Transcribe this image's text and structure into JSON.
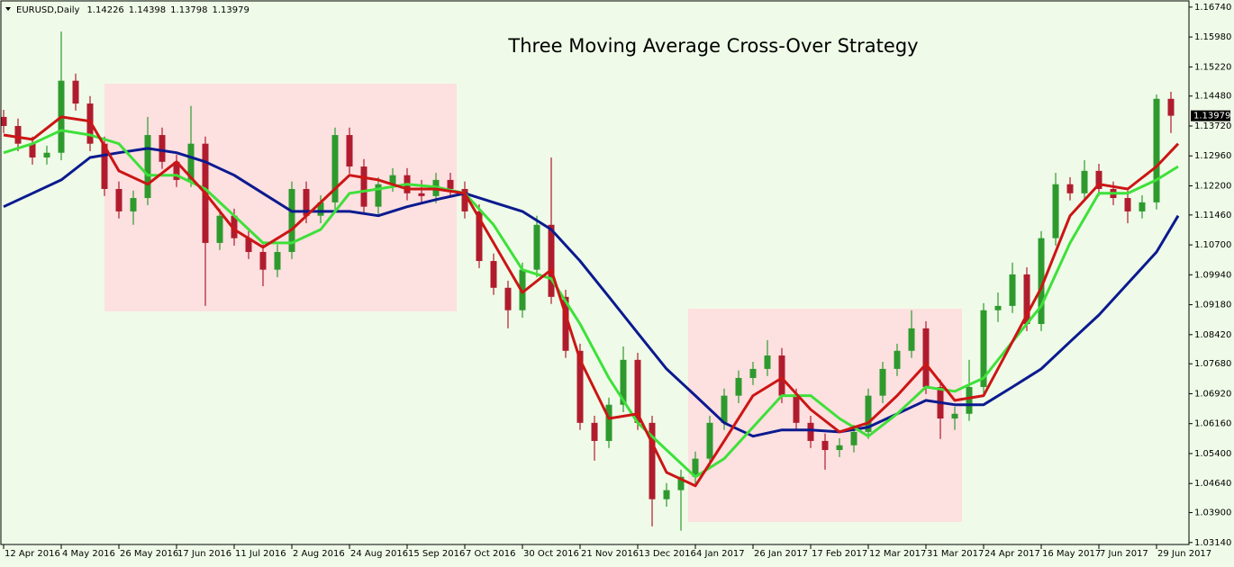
{
  "chart_data": {
    "type": "candlestick",
    "header": {
      "symbol": "EURUSD,Daily",
      "ohlc": [
        1.14226,
        1.14398,
        1.13798,
        1.13979
      ]
    },
    "title": "Three Moving Average Cross-Over Strategy",
    "up_color": "#2e9a2e",
    "down_color": "#b01c2e",
    "x": [
      0,
      4,
      8,
      12,
      16,
      20,
      24,
      28,
      32,
      36,
      40,
      44,
      48,
      52,
      56,
      60,
      64,
      68,
      72,
      76,
      80,
      84,
      88,
      92,
      96,
      100,
      104,
      108,
      112,
      116,
      120,
      124,
      128,
      132,
      136,
      140,
      144,
      148,
      152,
      156,
      160,
      164,
      168,
      172,
      176,
      180,
      184,
      188,
      192,
      196,
      200,
      204,
      208,
      212,
      216,
      220,
      224,
      228,
      232,
      236,
      240,
      244,
      248,
      252,
      256,
      260,
      264,
      268,
      272,
      276,
      280,
      284,
      288,
      292,
      296,
      300,
      304,
      308,
      312,
      316,
      320,
      324
    ],
    "open": [
      1.1395,
      1.1372,
      1.1327,
      1.1292,
      1.1304,
      1.1487,
      1.1429,
      1.1327,
      1.1212,
      1.1155,
      1.1189,
      1.1349,
      1.1281,
      1.1235,
      1.1327,
      1.1075,
      1.1144,
      1.1087,
      1.1052,
      1.1007,
      1.1052,
      1.1212,
      1.1144,
      1.1178,
      1.1349,
      1.1269,
      1.1167,
      1.1224,
      1.1247,
      1.1201,
      1.1194,
      1.1235,
      1.1212,
      1.1155,
      1.1029,
      1.0961,
      1.0904,
      1.1007,
      1.1121,
      1.0938,
      1.0801,
      1.0618,
      1.0572,
      1.0664,
      1.0778,
      1.0618,
      1.0424,
      1.0447,
      1.0481,
      1.0527,
      1.0618,
      1.0687,
      1.0732,
      1.0755,
      1.0789,
      1.0687,
      1.0618,
      1.0572,
      1.0549,
      1.0561,
      1.0595,
      1.0687,
      1.0755,
      1.0801,
      1.0858,
      1.0709,
      1.0629,
      1.0641,
      1.0709,
      1.0904,
      1.0915,
      1.0995,
      1.0869,
      1.1087,
      1.1224,
      1.1201,
      1.1258,
      1.1212,
      1.1189,
      1.1155,
      1.1178,
      1.1441
    ],
    "high": [
      1.1413,
      1.1391,
      1.1345,
      1.1322,
      1.1612,
      1.1505,
      1.1448,
      1.1345,
      1.1231,
      1.1208,
      1.1395,
      1.1368,
      1.1299,
      1.1423,
      1.1345,
      1.1162,
      1.1162,
      1.1105,
      1.1071,
      1.1071,
      1.1231,
      1.1231,
      1.1196,
      1.1368,
      1.1368,
      1.1288,
      1.1242,
      1.1265,
      1.1265,
      1.1235,
      1.1253,
      1.1253,
      1.1231,
      1.1173,
      1.1048,
      1.0979,
      1.1025,
      1.1144,
      1.1292,
      1.0956,
      1.0819,
      1.0636,
      1.0682,
      1.0812,
      1.0796,
      1.0636,
      1.0465,
      1.0499,
      1.0545,
      1.0636,
      1.0705,
      1.0751,
      1.0773,
      1.0828,
      1.0808,
      1.0705,
      1.0636,
      1.0591,
      1.0579,
      1.0613,
      1.0705,
      1.0773,
      1.0819,
      1.0904,
      1.0876,
      1.0728,
      1.0659,
      1.0778,
      1.0922,
      1.0949,
      1.1025,
      1.1013,
      1.1105,
      1.1253,
      1.1242,
      1.1285,
      1.1276,
      1.1231,
      1.1208,
      1.1196,
      1.1452,
      1.1459
    ],
    "low": [
      1.1354,
      1.1308,
      1.1274,
      1.1274,
      1.1285,
      1.1411,
      1.1308,
      1.1194,
      1.1137,
      1.1121,
      1.1171,
      1.1263,
      1.1217,
      1.1217,
      1.0915,
      1.1057,
      1.1068,
      1.1034,
      1.0965,
      1.0988,
      1.1034,
      1.1125,
      1.1125,
      1.116,
      1.1251,
      1.1148,
      1.1148,
      1.1205,
      1.1183,
      1.1176,
      1.1176,
      1.1194,
      1.1137,
      1.1011,
      1.0943,
      1.0858,
      1.0885,
      1.0988,
      1.092,
      1.0783,
      1.06,
      1.0522,
      1.0554,
      1.0645,
      1.06,
      1.0355,
      1.0405,
      1.0344,
      1.0463,
      1.0508,
      1.06,
      1.0668,
      1.0714,
      1.0737,
      1.0668,
      1.06,
      1.0554,
      1.0499,
      1.0531,
      1.0543,
      1.0577,
      1.0668,
      1.0737,
      1.0783,
      1.0691,
      1.0577,
      1.06,
      1.0623,
      1.0691,
      1.0874,
      1.0897,
      1.0851,
      1.0851,
      1.1068,
      1.1183,
      1.1183,
      1.1194,
      1.1171,
      1.1125,
      1.1137,
      1.116,
      1.1354
    ],
    "close": [
      1.1372,
      1.1327,
      1.1292,
      1.1304,
      1.1487,
      1.1429,
      1.1327,
      1.1212,
      1.1155,
      1.1189,
      1.1349,
      1.1281,
      1.1235,
      1.1327,
      1.1075,
      1.1144,
      1.1087,
      1.1052,
      1.1007,
      1.1052,
      1.1212,
      1.1144,
      1.1178,
      1.1349,
      1.1269,
      1.1167,
      1.1224,
      1.1247,
      1.1201,
      1.1194,
      1.1235,
      1.1212,
      1.1155,
      1.1029,
      1.0961,
      1.0904,
      1.1007,
      1.1121,
      1.0938,
      1.0801,
      1.0618,
      1.0572,
      1.0664,
      1.0778,
      1.0618,
      1.0424,
      1.0447,
      1.0481,
      1.0527,
      1.0618,
      1.0687,
      1.0732,
      1.0755,
      1.0789,
      1.0687,
      1.0618,
      1.0572,
      1.0549,
      1.0561,
      1.0595,
      1.0687,
      1.0755,
      1.0801,
      1.0858,
      1.0709,
      1.0629,
      1.0641,
      1.0709,
      1.0904,
      1.0915,
      1.0995,
      1.0869,
      1.1087,
      1.1224,
      1.1201,
      1.1258,
      1.1212,
      1.1189,
      1.1155,
      1.1178,
      1.1441,
      1.1398
    ],
    "lines": [
      {
        "color": "#0b1a8f",
        "x": [
          0,
          8,
          16,
          24,
          32,
          40,
          48,
          56,
          64,
          72,
          80,
          88,
          96,
          104,
          112,
          120,
          128,
          136,
          144,
          152,
          160,
          168,
          176,
          184,
          192,
          200,
          208,
          216,
          224,
          232,
          240,
          248,
          256,
          264,
          272,
          280,
          288,
          296,
          304,
          312,
          320,
          326
        ],
        "values": [
          1.1167,
          1.1201,
          1.1235,
          1.1292,
          1.1304,
          1.1315,
          1.1304,
          1.1281,
          1.1247,
          1.1201,
          1.1155,
          1.1155,
          1.1155,
          1.1144,
          1.1167,
          1.1185,
          1.1201,
          1.1178,
          1.1155,
          1.1109,
          1.1029,
          1.0938,
          1.0846,
          1.0755,
          1.0687,
          1.0618,
          1.0584,
          1.06,
          1.06,
          1.0595,
          1.0607,
          1.0641,
          1.0675,
          1.0664,
          1.0664,
          1.0709,
          1.0755,
          1.0824,
          1.0892,
          1.0972,
          1.1052,
          1.1144
        ]
      },
      {
        "color": "#3ee03a",
        "x": [
          0,
          8,
          16,
          24,
          32,
          40,
          48,
          56,
          64,
          72,
          80,
          88,
          96,
          104,
          112,
          120,
          128,
          136,
          144,
          152,
          160,
          168,
          176,
          184,
          192,
          200,
          208,
          216,
          224,
          232,
          240,
          248,
          256,
          264,
          272,
          280,
          288,
          296,
          304,
          312,
          320,
          326
        ],
        "values": [
          1.1304,
          1.1327,
          1.1361,
          1.1349,
          1.1327,
          1.1247,
          1.1247,
          1.1212,
          1.1144,
          1.1075,
          1.1075,
          1.1109,
          1.1201,
          1.1212,
          1.1224,
          1.1217,
          1.1201,
          1.1121,
          1.1007,
          1.0984,
          1.0869,
          1.0732,
          1.0618,
          1.0549,
          1.0481,
          1.0527,
          1.0607,
          1.0687,
          1.0687,
          1.0629,
          1.0584,
          1.0641,
          1.0709,
          1.0698,
          1.0732,
          1.0824,
          1.0915,
          1.1075,
          1.1201,
          1.1201,
          1.1235,
          1.1269
        ]
      },
      {
        "color": "#cc1515",
        "x": [
          0,
          8,
          16,
          24,
          32,
          40,
          48,
          56,
          64,
          72,
          80,
          88,
          96,
          104,
          112,
          120,
          128,
          136,
          144,
          152,
          160,
          168,
          176,
          184,
          192,
          200,
          208,
          216,
          224,
          232,
          240,
          248,
          256,
          264,
          272,
          280,
          288,
          296,
          304,
          312,
          320,
          326
        ],
        "values": [
          1.1349,
          1.1338,
          1.1395,
          1.1384,
          1.1258,
          1.1224,
          1.1281,
          1.1201,
          1.1109,
          1.1064,
          1.1109,
          1.1178,
          1.1247,
          1.1235,
          1.1212,
          1.1212,
          1.1201,
          1.1075,
          1.0949,
          1.1007,
          1.0778,
          1.0629,
          1.0641,
          1.0492,
          1.0458,
          1.0572,
          1.0687,
          1.0732,
          1.0652,
          1.0595,
          1.0618,
          1.0687,
          1.0767,
          1.0675,
          1.0687,
          1.0824,
          1.0961,
          1.1144,
          1.1224,
          1.1212,
          1.1269,
          1.1327
        ]
      }
    ],
    "last_price": 1.13979,
    "xlim": [
      -1,
      329
    ],
    "ylim": [
      1.0309,
      1.1692
    ],
    "xticks": [
      {
        "value": 0,
        "label": "12 Apr 2016"
      },
      {
        "value": 16,
        "label": "4 May 2016"
      },
      {
        "value": 32,
        "label": "26 May 2016"
      },
      {
        "value": 48,
        "label": "17 Jun 2016"
      },
      {
        "value": 64,
        "label": "11 Jul 2016"
      },
      {
        "value": 80,
        "label": "2 Aug 2016"
      },
      {
        "value": 96,
        "label": "24 Aug 2016"
      },
      {
        "value": 112,
        "label": "15 Sep 2016"
      },
      {
        "value": 128,
        "label": "7 Oct 2016"
      },
      {
        "value": 144,
        "label": "30 Oct 2016"
      },
      {
        "value": 160,
        "label": "21 Nov 2016"
      },
      {
        "value": 176,
        "label": "13 Dec 2016"
      },
      {
        "value": 192,
        "label": "4 Jan 2017"
      },
      {
        "value": 208,
        "label": "26 Jan 2017"
      },
      {
        "value": 224,
        "label": "17 Feb 2017"
      },
      {
        "value": 240,
        "label": "12 Mar 2017"
      },
      {
        "value": 256,
        "label": "31 Mar 2017"
      },
      {
        "value": 272,
        "label": "24 Apr 2017"
      },
      {
        "value": 288,
        "label": "16 May 2017"
      },
      {
        "value": 304,
        "label": "7 Jun 2017"
      },
      {
        "value": 320,
        "label": "29 Jun 2017"
      }
    ],
    "yticks": [
      {
        "value": 1.1674,
        "label": "1.16740"
      },
      {
        "value": 1.1598,
        "label": "1.15980"
      },
      {
        "value": 1.1522,
        "label": "1.15220"
      },
      {
        "value": 1.1448,
        "label": "1.14480"
      },
      {
        "value": 1.1372,
        "label": "1.13720"
      },
      {
        "value": 1.1296,
        "label": "1.12960"
      },
      {
        "value": 1.122,
        "label": "1.12200"
      },
      {
        "value": 1.1146,
        "label": "1.11460"
      },
      {
        "value": 1.107,
        "label": "1.10700"
      },
      {
        "value": 1.0994,
        "label": "1.09940"
      },
      {
        "value": 1.0918,
        "label": "1.09180"
      },
      {
        "value": 1.0842,
        "label": "1.08420"
      },
      {
        "value": 1.0768,
        "label": "1.07680"
      },
      {
        "value": 1.0692,
        "label": "1.06920"
      },
      {
        "value": 1.0616,
        "label": "1.06160"
      },
      {
        "value": 1.054,
        "label": "1.05400"
      },
      {
        "value": 1.0464,
        "label": "1.04640"
      },
      {
        "value": 1.039,
        "label": "1.03900"
      },
      {
        "value": 1.0314,
        "label": "1.03140"
      }
    ]
  }
}
